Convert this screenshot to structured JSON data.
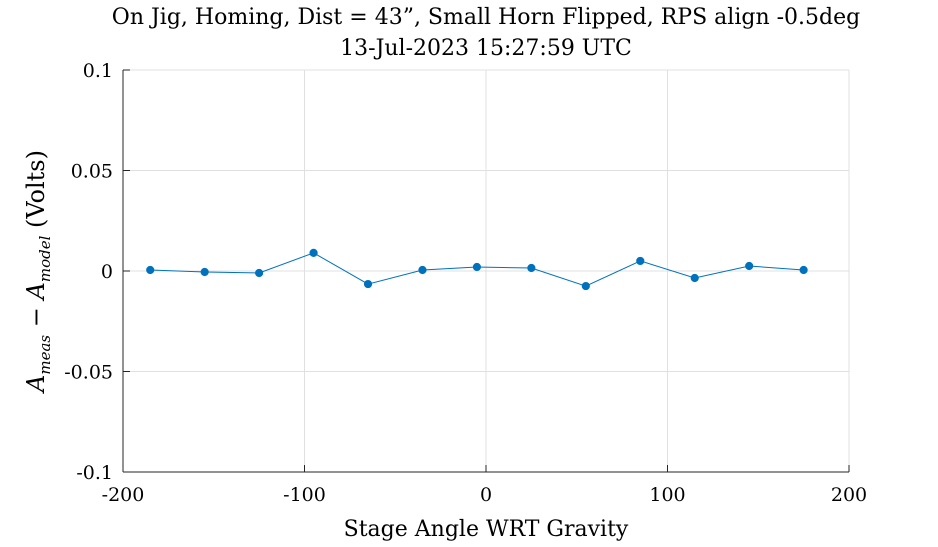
{
  "chart_data": {
    "type": "line",
    "title": "On Jig, Homing, Dist = 43”, Small Horn Flipped, RPS align -0.5deg",
    "subtitle": "13-Jul-2023 15:27:59 UTC",
    "xlabel": "Stage Angle WRT Gravity",
    "ylabel": {
      "a1": "A",
      "sub1": "meas",
      "minus": " − ",
      "a2": "A",
      "sub2": "model",
      "units": " (Volts)"
    },
    "xlim": [
      -200,
      200
    ],
    "ylim": [
      -0.1,
      0.1
    ],
    "xticks": [
      -200,
      -100,
      0,
      100,
      200
    ],
    "xtick_labels": [
      "-200",
      "-100",
      "0",
      "100",
      "200"
    ],
    "yticks": [
      -0.1,
      -0.05,
      0,
      0.05,
      0.1
    ],
    "ytick_labels": [
      "-0.1",
      "-0.05",
      "0",
      "0.05",
      "0.1"
    ],
    "grid": true,
    "series": [
      {
        "color": "#0072BD",
        "x": [
          -185,
          -155,
          -125,
          -95,
          -65,
          -35,
          -5,
          25,
          55,
          85,
          115,
          145,
          175
        ],
        "y": [
          0.0005,
          -0.0005,
          -0.001,
          0.009,
          -0.0065,
          0.0005,
          0.002,
          0.0015,
          -0.0075,
          0.005,
          -0.0035,
          0.0025,
          0.0005
        ]
      }
    ]
  }
}
